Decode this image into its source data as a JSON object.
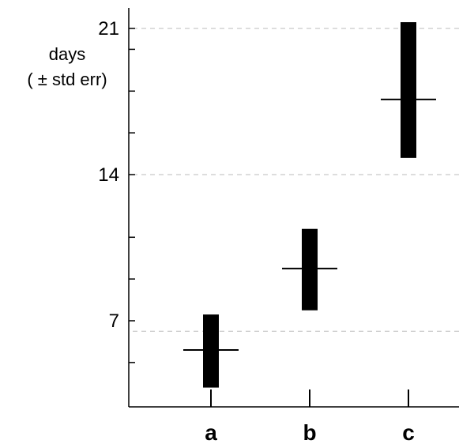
{
  "chart_data": {
    "type": "bar",
    "title": "",
    "xlabel": "",
    "ylabel_line1": "days",
    "ylabel_line2": "( ± std err)",
    "categories": [
      "a",
      "b",
      "c"
    ],
    "series": [
      {
        "means": [
          5.6,
          9.5,
          17.6
        ],
        "lower": [
          3.8,
          7.5,
          14.8
        ],
        "upper": [
          7.3,
          11.4,
          21.3
        ]
      }
    ],
    "y_ticks_labeled": [
      {
        "value": 7,
        "label": "7"
      },
      {
        "value": 14,
        "label": "14"
      },
      {
        "value": 21,
        "label": "21"
      }
    ],
    "y_minor_ticks": [
      5,
      9,
      11,
      16,
      18,
      20
    ],
    "gridlines": [
      6.5,
      14,
      21
    ],
    "ylim": [
      1,
      21.5
    ],
    "grid": true,
    "colors": {
      "bar": "#000000",
      "axis": "#000000",
      "grid": "#bbbbbb"
    }
  }
}
